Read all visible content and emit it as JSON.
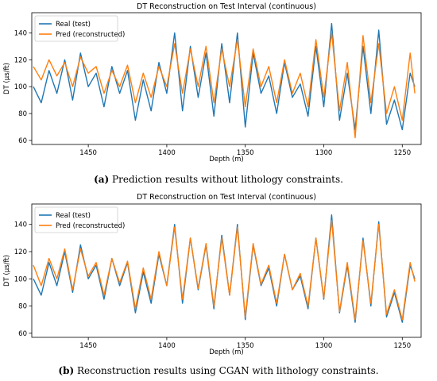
{
  "chart_data": [
    {
      "type": "line",
      "title": "DT Reconstruction on Test Interval (continuous)",
      "xlabel": "Depth  (m)",
      "ylabel": "DT (μs/ft)",
      "xlim": [
        1486,
        1238
      ],
      "ylim": [
        57,
        155
      ],
      "x_ticks": [
        1450,
        1400,
        1350,
        1300,
        1250
      ],
      "y_ticks": [
        60,
        80,
        100,
        120,
        140
      ],
      "legend_position": "top-left",
      "series": [
        {
          "name": "Real (test)",
          "color": "#1f77b4",
          "x": [
            1485,
            1480,
            1475,
            1470,
            1465,
            1460,
            1455,
            1450,
            1445,
            1440,
            1435,
            1430,
            1425,
            1420,
            1415,
            1410,
            1405,
            1400,
            1395,
            1390,
            1385,
            1380,
            1375,
            1370,
            1365,
            1360,
            1355,
            1350,
            1345,
            1340,
            1335,
            1330,
            1325,
            1320,
            1315,
            1310,
            1305,
            1300,
            1295,
            1290,
            1285,
            1280,
            1275,
            1270,
            1265,
            1260,
            1255,
            1250,
            1245,
            1242
          ],
          "values": [
            100,
            88,
            112,
            95,
            120,
            90,
            125,
            100,
            110,
            85,
            115,
            95,
            112,
            75,
            105,
            82,
            118,
            95,
            140,
            82,
            130,
            92,
            125,
            78,
            132,
            88,
            140,
            70,
            125,
            95,
            108,
            80,
            118,
            92,
            102,
            78,
            130,
            85,
            147,
            75,
            110,
            68,
            130,
            80,
            142,
            72,
            90,
            68,
            110,
            100
          ]
        },
        {
          "name": "Pred (reconstructed)",
          "color": "#ff7f0e",
          "x": [
            1485,
            1480,
            1475,
            1470,
            1465,
            1460,
            1455,
            1450,
            1445,
            1440,
            1435,
            1430,
            1425,
            1420,
            1415,
            1410,
            1405,
            1400,
            1395,
            1390,
            1385,
            1380,
            1375,
            1370,
            1365,
            1360,
            1355,
            1350,
            1345,
            1340,
            1335,
            1330,
            1325,
            1320,
            1315,
            1310,
            1305,
            1300,
            1295,
            1290,
            1285,
            1280,
            1275,
            1270,
            1265,
            1260,
            1255,
            1250,
            1245,
            1242
          ],
          "values": [
            115,
            105,
            120,
            108,
            118,
            100,
            122,
            110,
            115,
            95,
            112,
            100,
            116,
            88,
            110,
            92,
            115,
            100,
            132,
            95,
            128,
            100,
            130,
            88,
            128,
            100,
            135,
            85,
            128,
            100,
            115,
            88,
            120,
            95,
            110,
            85,
            135,
            92,
            140,
            82,
            118,
            62,
            138,
            88,
            132,
            80,
            100,
            75,
            125,
            95
          ]
        }
      ]
    },
    {
      "type": "line",
      "title": "DT Reconstruction on Test Interval (continuous)",
      "xlabel": "Depth  (m)",
      "ylabel": "DT (μs/ft)",
      "xlim": [
        1486,
        1238
      ],
      "ylim": [
        57,
        155
      ],
      "x_ticks": [
        1450,
        1400,
        1350,
        1300,
        1250
      ],
      "y_ticks": [
        60,
        80,
        100,
        120,
        140
      ],
      "legend_position": "top-left",
      "series": [
        {
          "name": "Real (test)",
          "color": "#1f77b4",
          "x": [
            1485,
            1480,
            1475,
            1470,
            1465,
            1460,
            1455,
            1450,
            1445,
            1440,
            1435,
            1430,
            1425,
            1420,
            1415,
            1410,
            1405,
            1400,
            1395,
            1390,
            1385,
            1380,
            1375,
            1370,
            1365,
            1360,
            1355,
            1350,
            1345,
            1340,
            1335,
            1330,
            1325,
            1320,
            1315,
            1310,
            1305,
            1300,
            1295,
            1290,
            1285,
            1280,
            1275,
            1270,
            1265,
            1260,
            1255,
            1250,
            1245,
            1242
          ],
          "values": [
            100,
            88,
            112,
            95,
            120,
            90,
            125,
            100,
            110,
            85,
            115,
            95,
            112,
            75,
            105,
            82,
            118,
            95,
            140,
            82,
            130,
            92,
            125,
            78,
            132,
            88,
            140,
            70,
            125,
            95,
            108,
            80,
            118,
            92,
            102,
            78,
            130,
            85,
            147,
            75,
            110,
            68,
            130,
            80,
            142,
            72,
            90,
            68,
            110,
            100
          ]
        },
        {
          "name": "Pred (reconstructed)",
          "color": "#ff7f0e",
          "x": [
            1485,
            1480,
            1475,
            1470,
            1465,
            1460,
            1455,
            1450,
            1445,
            1440,
            1435,
            1430,
            1425,
            1420,
            1415,
            1410,
            1405,
            1400,
            1395,
            1390,
            1385,
            1380,
            1375,
            1370,
            1365,
            1360,
            1355,
            1350,
            1345,
            1340,
            1335,
            1330,
            1325,
            1320,
            1315,
            1310,
            1305,
            1300,
            1295,
            1290,
            1285,
            1280,
            1275,
            1270,
            1265,
            1260,
            1255,
            1250,
            1245,
            1242
          ],
          "values": [
            110,
            95,
            115,
            100,
            122,
            92,
            122,
            102,
            112,
            88,
            115,
            97,
            113,
            78,
            108,
            85,
            120,
            95,
            138,
            85,
            130,
            93,
            126,
            80,
            130,
            88,
            138,
            72,
            126,
            96,
            110,
            82,
            118,
            92,
            104,
            80,
            130,
            86,
            143,
            76,
            112,
            70,
            128,
            82,
            140,
            74,
            92,
            70,
            112,
            98
          ]
        }
      ]
    }
  ],
  "captions": [
    {
      "label": "(a)",
      "text": " Prediction results without lithology constraints."
    },
    {
      "label": "(b)",
      "text": " Reconstruction results using CGAN with lithology constraints."
    }
  ]
}
